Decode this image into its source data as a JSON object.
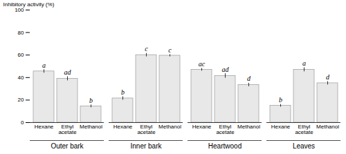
{
  "chart_data": {
    "type": "bar",
    "categories": [
      "Outer bark",
      "Inner bark",
      "Heartwood",
      "Leaves"
    ],
    "series": [
      {
        "name": "Hexane",
        "color": "#e8e8e8",
        "values": [
          45.5,
          21.5,
          47.0,
          15.0
        ],
        "errors": [
          1.5,
          1.5,
          1.2,
          1.2
        ],
        "sig_labels": [
          "a",
          "b",
          "ac",
          "b"
        ]
      },
      {
        "name": "Ethyl\nacetate",
        "color": "#e8e8e8",
        "values": [
          39.0,
          60.0,
          41.5,
          47.0
        ],
        "errors": [
          1.8,
          1.5,
          2.0,
          1.8
        ],
        "sig_labels": [
          "ad",
          "c",
          "ad",
          "a"
        ]
      },
      {
        "name": "Methanol",
        "color": "#e8e8e8",
        "values": [
          14.5,
          59.5,
          33.5,
          35.0
        ],
        "errors": [
          1.2,
          1.0,
          1.5,
          1.5
        ],
        "sig_labels": [
          "b",
          "c",
          "d",
          "d"
        ]
      }
    ],
    "ylabel": "Inhibitory activity (%)",
    "ylim": [
      0,
      100
    ],
    "yticks": [
      0,
      20,
      40,
      60,
      80,
      100
    ],
    "grid": false
  }
}
